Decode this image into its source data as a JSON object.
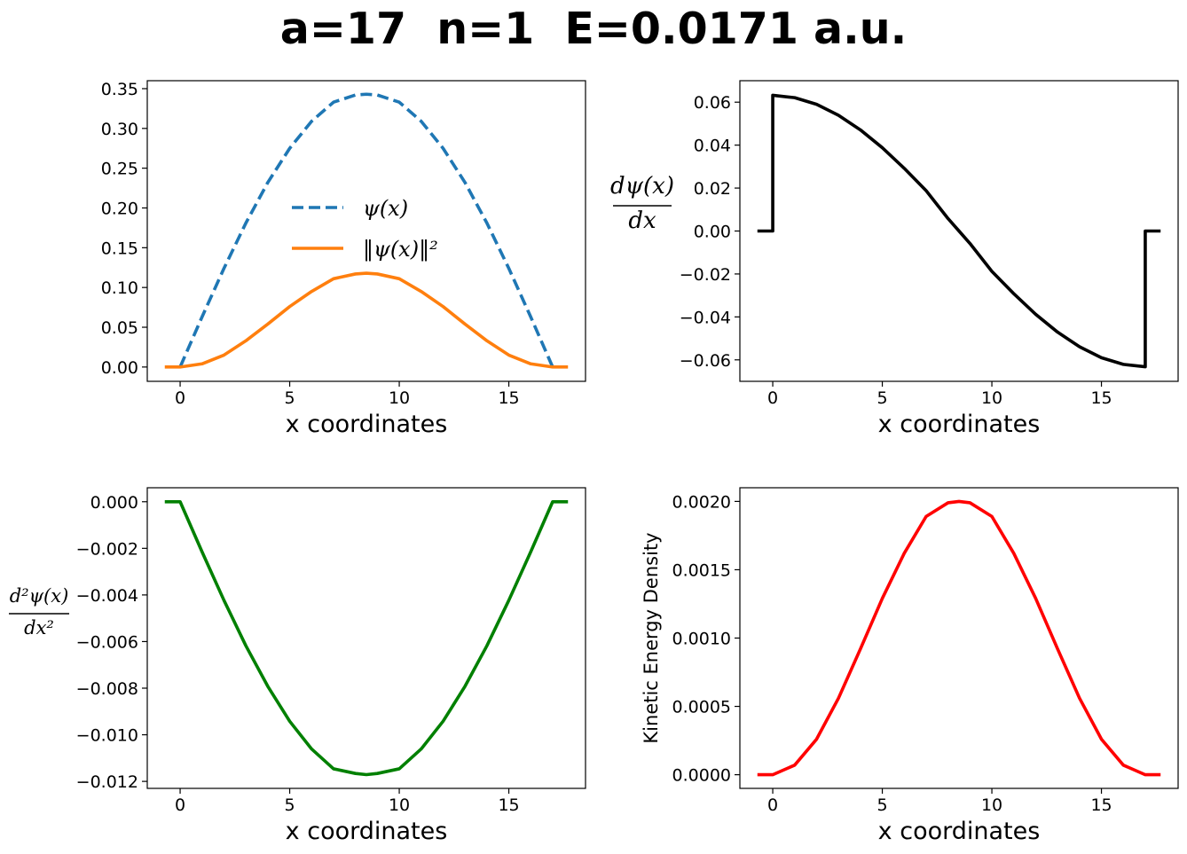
{
  "figure": {
    "title": "a=17  n=1  E=0.0171 a.u."
  },
  "colors": {
    "psi": "#1f77b4",
    "density": "#ff7f0e",
    "first_derivative": "#000000",
    "second_derivative": "#008000",
    "kinetic": "#ff0000"
  },
  "chart_data": [
    {
      "id": "wavefunction",
      "type": "line",
      "title": "",
      "xlabel": "x coordinates",
      "ylabel": "",
      "xlim": [
        -1.5,
        18.5
      ],
      "ylim": [
        -0.018,
        0.36
      ],
      "xticks": [
        0,
        5,
        10,
        15
      ],
      "xtick_labels": [
        "0",
        "5",
        "10",
        "15"
      ],
      "yticks": [
        0.0,
        0.05,
        0.1,
        0.15,
        0.2,
        0.25,
        0.3,
        0.35
      ],
      "ytick_labels": [
        "0.00",
        "0.05",
        "0.10",
        "0.15",
        "0.20",
        "0.25",
        "0.30",
        "0.35"
      ],
      "legend": [
        "ψ(x)",
        "‖ψ(x)‖²"
      ],
      "legend_placement": "center",
      "series": [
        {
          "name": "ψ(x)",
          "style": "dashed",
          "x": [
            0,
            1,
            2,
            3,
            4,
            5,
            6,
            7,
            8,
            8.5,
            9,
            10,
            11,
            12,
            13,
            14,
            15,
            16,
            17
          ],
          "values": [
            0.0,
            0.063,
            0.124,
            0.181,
            0.232,
            0.275,
            0.309,
            0.333,
            0.342,
            0.343,
            0.342,
            0.333,
            0.309,
            0.275,
            0.232,
            0.181,
            0.124,
            0.063,
            0.0
          ]
        },
        {
          "name": "‖ψ(x)‖²",
          "style": "solid",
          "x": [
            -0.7,
            0,
            1,
            2,
            3,
            4,
            5,
            6,
            7,
            8,
            8.5,
            9,
            10,
            11,
            12,
            13,
            14,
            15,
            16,
            17,
            17.7
          ],
          "values": [
            0.0,
            0.0,
            0.004,
            0.015,
            0.033,
            0.054,
            0.076,
            0.095,
            0.111,
            0.117,
            0.118,
            0.117,
            0.111,
            0.095,
            0.076,
            0.054,
            0.033,
            0.015,
            0.004,
            0.0,
            0.0
          ]
        }
      ]
    },
    {
      "id": "first-derivative",
      "type": "line",
      "title": "",
      "xlabel": "x coordinates",
      "ylabel": "dψ(x)/dx",
      "ylabel_numerator": "dψ(x)",
      "ylabel_denominator": "dx",
      "xlim": [
        -1.5,
        18.5
      ],
      "ylim": [
        -0.07,
        0.07
      ],
      "xticks": [
        0,
        5,
        10,
        15
      ],
      "xtick_labels": [
        "0",
        "5",
        "10",
        "15"
      ],
      "yticks": [
        -0.06,
        -0.04,
        -0.02,
        0.0,
        0.02,
        0.04,
        0.06
      ],
      "ytick_labels": [
        "−0.06",
        "−0.04",
        "−0.02",
        "0.00",
        "0.02",
        "0.04",
        "0.06"
      ],
      "series": [
        {
          "name": "dψ/dx",
          "style": "solid",
          "x": [
            -0.7,
            0,
            0,
            1,
            2,
            3,
            4,
            5,
            6,
            7,
            8,
            8.5,
            9,
            10,
            11,
            12,
            13,
            14,
            15,
            16,
            17,
            17,
            17.7
          ],
          "values": [
            0.0,
            0.0,
            0.0632,
            0.0621,
            0.059,
            0.0539,
            0.0471,
            0.0388,
            0.0292,
            0.0188,
            0.0058,
            0.0,
            -0.0058,
            -0.0188,
            -0.0292,
            -0.0388,
            -0.0471,
            -0.0539,
            -0.059,
            -0.0621,
            -0.0632,
            0.0,
            0.0
          ]
        }
      ]
    },
    {
      "id": "second-derivative",
      "type": "line",
      "title": "",
      "xlabel": "x coordinates",
      "ylabel": "d²ψ(x)/dx²",
      "ylabel_numerator": "d²ψ(x)",
      "ylabel_denominator": "dx²",
      "xlim": [
        -1.5,
        18.5
      ],
      "ylim": [
        -0.0123,
        0.0006
      ],
      "xticks": [
        0,
        5,
        10,
        15
      ],
      "xtick_labels": [
        "0",
        "5",
        "10",
        "15"
      ],
      "yticks": [
        -0.012,
        -0.01,
        -0.008,
        -0.006,
        -0.004,
        -0.002,
        0.0
      ],
      "ytick_labels": [
        "−0.012",
        "−0.010",
        "−0.008",
        "−0.006",
        "−0.004",
        "−0.002",
        "0.000"
      ],
      "series": [
        {
          "name": "d²ψ/dx²",
          "style": "solid",
          "x": [
            -0.7,
            0,
            1,
            2,
            3,
            4,
            5,
            6,
            7,
            8,
            8.5,
            9,
            10,
            11,
            12,
            13,
            14,
            15,
            16,
            17,
            17.7
          ],
          "values": [
            0.0,
            0.0,
            -0.00215,
            -0.00423,
            -0.00618,
            -0.00792,
            -0.00942,
            -0.01061,
            -0.01146,
            -0.01166,
            -0.01171,
            -0.01166,
            -0.01146,
            -0.01061,
            -0.00942,
            -0.00792,
            -0.00618,
            -0.00423,
            -0.00215,
            0.0,
            0.0
          ]
        }
      ]
    },
    {
      "id": "kinetic-energy-density",
      "type": "line",
      "title": "",
      "xlabel": "x coordinates",
      "ylabel": "Kinetic Energy Density",
      "xlim": [
        -1.5,
        18.5
      ],
      "ylim": [
        -0.0001,
        0.0021
      ],
      "xticks": [
        0,
        5,
        10,
        15
      ],
      "xtick_labels": [
        "0",
        "5",
        "10",
        "15"
      ],
      "yticks": [
        0.0,
        0.0005,
        0.001,
        0.0015,
        0.002
      ],
      "ytick_labels": [
        "0.0000",
        "0.0005",
        "0.0010",
        "0.0015",
        "0.0020"
      ],
      "series": [
        {
          "name": "kinetic energy density",
          "style": "solid",
          "x": [
            -0.7,
            0,
            1,
            2,
            3,
            4,
            5,
            6,
            7,
            8,
            8.5,
            9,
            10,
            11,
            12,
            13,
            14,
            15,
            16,
            17,
            17.7
          ],
          "values": [
            0.0,
            0.0,
            7e-05,
            0.00026,
            0.00056,
            0.00092,
            0.00129,
            0.00162,
            0.00189,
            0.00199,
            0.002,
            0.00199,
            0.00189,
            0.00162,
            0.00129,
            0.00092,
            0.00056,
            0.00026,
            7e-05,
            0.0,
            0.0
          ]
        }
      ]
    }
  ]
}
